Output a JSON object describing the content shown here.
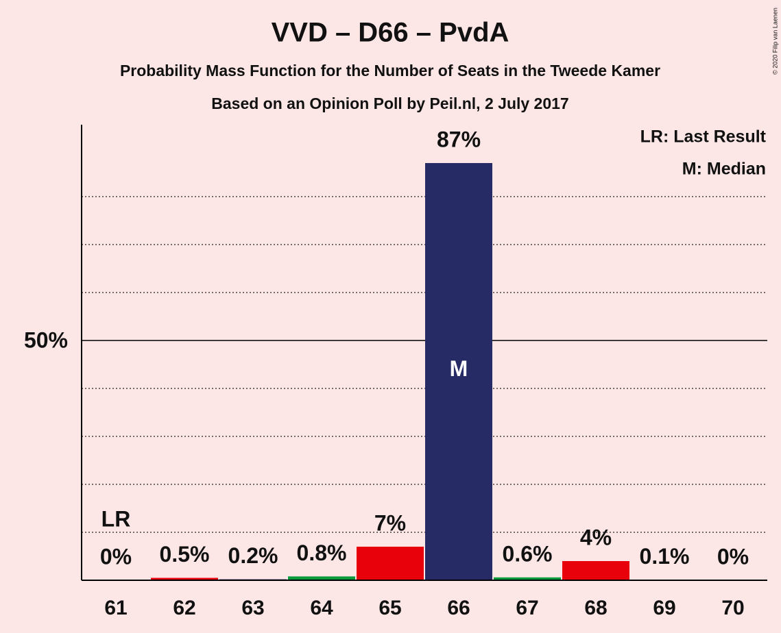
{
  "chart_data": {
    "type": "bar",
    "title": "VVD – D66 – PvdA",
    "subtitle": "Probability Mass Function for the Number of Seats in the Tweede Kamer",
    "subtitle2": "Based on an Opinion Poll by Peil.nl, 2 July 2017",
    "categories": [
      "61",
      "62",
      "63",
      "64",
      "65",
      "66",
      "67",
      "68",
      "69",
      "70"
    ],
    "values": [
      0,
      0.5,
      0.2,
      0.8,
      7,
      87,
      0.6,
      4,
      0.1,
      0
    ],
    "value_labels": [
      "0%",
      "0.5%",
      "0.2%",
      "0.8%",
      "7%",
      "87%",
      "0.6%",
      "4%",
      "0.1%",
      "0%"
    ],
    "colors": [
      "#262b66",
      "#e8000b",
      "#262b66",
      "#0a9a3c",
      "#e8000b",
      "#262b66",
      "#0a9a3c",
      "#e8000b",
      "#262b66",
      "#262b66"
    ],
    "ylim": [
      0,
      95
    ],
    "yticks": [
      {
        "value": 50,
        "label": "50%"
      }
    ],
    "minor_grid": [
      10,
      20,
      30,
      40,
      60,
      70,
      80
    ],
    "annotations": [
      {
        "category": "61",
        "label": "LR"
      },
      {
        "category": "66",
        "label": "M"
      }
    ],
    "legend": [
      "LR: Last Result",
      "M: Median"
    ],
    "copyright": "© 2020 Filip van Laenen"
  }
}
